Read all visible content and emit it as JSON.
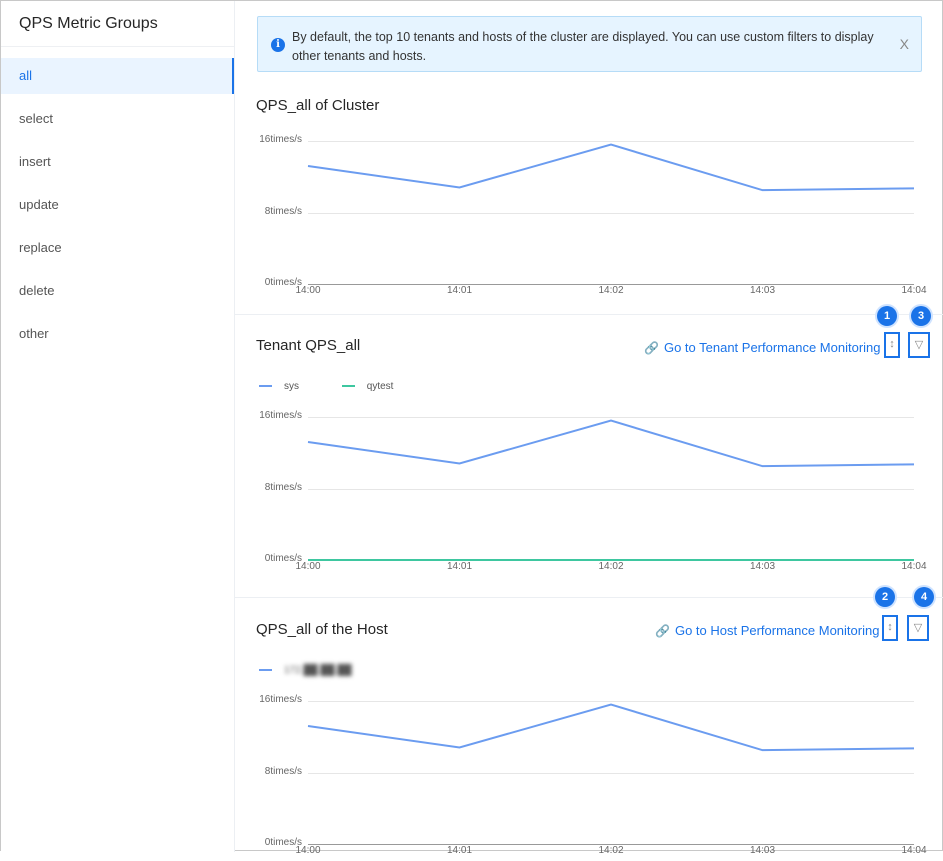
{
  "sidebar": {
    "title": "QPS Metric Groups",
    "items": [
      {
        "label": "all",
        "active": true
      },
      {
        "label": "select"
      },
      {
        "label": "insert"
      },
      {
        "label": "update"
      },
      {
        "label": "replace"
      },
      {
        "label": "delete"
      },
      {
        "label": "other"
      }
    ]
  },
  "alert": {
    "text": "By default, the top 10 tenants and hosts of the cluster are displayed. You can use custom filters to display other tenants and hosts.",
    "close": "X"
  },
  "colors": {
    "primary": "#1a73e8",
    "series_blue": "#6b9cf0",
    "series_green": "#3ec7a0"
  },
  "cluster": {
    "title": "QPS_all of Cluster"
  },
  "tenant": {
    "title": "Tenant QPS_all",
    "link": "Go to Tenant Performance Monitoring",
    "badge_left": "1",
    "badge_right": "3"
  },
  "host": {
    "title": "QPS_all of the Host",
    "link": "Go to Host Performance Monitoring",
    "badge_left": "2",
    "badge_right": "4"
  },
  "chart_data": [
    {
      "type": "line",
      "title": "QPS_all of Cluster",
      "x": [
        "14:00",
        "14:01",
        "14:02",
        "14:03",
        "14:04"
      ],
      "y_ticks": [
        "0times/s",
        "8times/s",
        "16times/s"
      ],
      "ylim": [
        0,
        16
      ],
      "series": [
        {
          "values": [
            13.2,
            10.8,
            15.6,
            10.5,
            10.7
          ],
          "color": "#6b9cf0"
        }
      ]
    },
    {
      "type": "line",
      "title": "Tenant QPS_all",
      "x": [
        "14:00",
        "14:01",
        "14:02",
        "14:03",
        "14:04"
      ],
      "y_ticks": [
        "0times/s",
        "8times/s",
        "16times/s"
      ],
      "ylim": [
        0,
        16
      ],
      "legend": "top-left",
      "series": [
        {
          "name": "sys",
          "values": [
            13.2,
            10.8,
            15.6,
            10.5,
            10.7
          ],
          "color": "#6b9cf0"
        },
        {
          "name": "qytest",
          "values": [
            0,
            0,
            0,
            0,
            0
          ],
          "color": "#3ec7a0"
        }
      ]
    },
    {
      "type": "line",
      "title": "QPS_all of the Host",
      "x": [
        "14:00",
        "14:01",
        "14:02",
        "14:03",
        "14:04"
      ],
      "y_ticks": [
        "0times/s",
        "8times/s",
        "16times/s"
      ],
      "ylim": [
        0,
        16
      ],
      "legend": "top-left",
      "series": [
        {
          "name": "172.██.██.██",
          "values": [
            13.2,
            10.8,
            15.6,
            10.5,
            10.7
          ],
          "color": "#6b9cf0"
        }
      ]
    }
  ]
}
